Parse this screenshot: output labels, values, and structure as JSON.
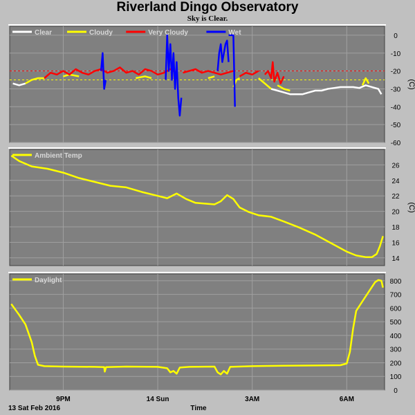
{
  "header": {
    "title": "Riverland Dingo Observatory",
    "subtitle": "Sky is Clear."
  },
  "footer": {
    "date_label": "13 Sat Feb 2016",
    "x_axis_label": "Time"
  },
  "colors": {
    "background": "#c0c0c0",
    "plot_area": "#808080",
    "grid": "#a0a0a0",
    "clear": "#ffffff",
    "cloudy": "#ffff00",
    "very_cloudy": "#ff0000",
    "wet": "#0000ff",
    "threshold_red": "#ff0000",
    "threshold_yellow": "#ffff00"
  },
  "chart_data": [
    {
      "type": "line",
      "panel": "sky",
      "unit": "(C)",
      "ylim": [
        -60,
        5
      ],
      "yticks": [
        0,
        -10,
        -20,
        -30,
        -40,
        -50,
        -60
      ],
      "xlim": [
        19.3,
        31.2
      ],
      "xticks": [
        {
          "x": 21,
          "label": "9PM"
        },
        {
          "x": 24,
          "label": "14 Sun"
        },
        {
          "x": 27,
          "label": "3AM"
        },
        {
          "x": 30,
          "label": "6AM"
        }
      ],
      "grid": true,
      "legend": "top-left",
      "legend_entries": [
        {
          "name": "Clear",
          "color": "#ffffff"
        },
        {
          "name": "Cloudy",
          "color": "#ffff00"
        },
        {
          "name": "Very Cloudy",
          "color": "#ff0000"
        },
        {
          "name": "Wet",
          "color": "#0000ff"
        }
      ],
      "thresholds": [
        {
          "value": -20,
          "color": "#ff0000"
        },
        {
          "value": -25,
          "color": "#ffff00"
        }
      ],
      "series": [
        {
          "name": "Clear",
          "color": "#ffffff",
          "segments": [
            [
              [
                19.4,
                -27
              ],
              [
                19.6,
                -28
              ],
              [
                19.8,
                -27
              ]
            ],
            [
              [
                27.6,
                -30
              ],
              [
                27.8,
                -31
              ],
              [
                28.0,
                -32
              ],
              [
                28.2,
                -33
              ],
              [
                28.4,
                -33
              ],
              [
                28.6,
                -33
              ],
              [
                28.8,
                -32
              ],
              [
                29.0,
                -31
              ],
              [
                29.2,
                -31
              ],
              [
                29.4,
                -30
              ],
              [
                29.6,
                -29.5
              ],
              [
                29.8,
                -29
              ],
              [
                30.0,
                -29
              ],
              [
                30.2,
                -29
              ],
              [
                30.4,
                -29.5
              ],
              [
                30.6,
                -28
              ],
              [
                30.8,
                -29
              ],
              [
                31.0,
                -30
              ],
              [
                31.1,
                -33
              ]
            ]
          ]
        },
        {
          "name": "Cloudy",
          "color": "#ffff00",
          "segments": [
            [
              [
                19.8,
                -27
              ],
              [
                20.0,
                -25
              ],
              [
                20.2,
                -24
              ],
              [
                20.4,
                -24
              ]
            ],
            [
              [
                21.0,
                -23
              ],
              [
                21.2,
                -22
              ],
              [
                21.5,
                -23
              ]
            ],
            [
              [
                23.3,
                -24
              ],
              [
                23.6,
                -23
              ],
              [
                23.8,
                -24
              ]
            ],
            [
              [
                25.6,
                -24
              ],
              [
                25.8,
                -23
              ]
            ],
            [
              [
                26.4,
                -29
              ],
              [
                26.5,
                -25
              ],
              [
                26.6,
                -24
              ]
            ],
            [
              [
                27.2,
                -24
              ],
              [
                27.4,
                -27
              ],
              [
                27.6,
                -30
              ]
            ],
            [
              [
                27.8,
                -28
              ],
              [
                28.0,
                -30
              ],
              [
                28.2,
                -31
              ]
            ],
            [
              [
                30.5,
                -28
              ],
              [
                30.6,
                -24
              ],
              [
                30.7,
                -27
              ]
            ]
          ]
        },
        {
          "name": "Very Cloudy",
          "color": "#ff0000",
          "segments": [
            [
              [
                20.4,
                -24
              ],
              [
                20.6,
                -21
              ],
              [
                20.8,
                -22
              ],
              [
                21.0,
                -20
              ],
              [
                21.2,
                -22
              ],
              [
                21.4,
                -19
              ],
              [
                21.6,
                -21
              ],
              [
                21.8,
                -22
              ],
              [
                22.0,
                -20
              ],
              [
                22.2,
                -19
              ],
              [
                22.4,
                -21
              ],
              [
                22.6,
                -20
              ],
              [
                22.8,
                -18
              ],
              [
                23.0,
                -21
              ],
              [
                23.2,
                -20
              ],
              [
                23.4,
                -22
              ],
              [
                23.6,
                -19
              ],
              [
                23.8,
                -20
              ],
              [
                24.0,
                -22
              ],
              [
                24.2,
                -21
              ],
              [
                24.4,
                -19
              ],
              [
                24.6,
                -21
              ]
            ],
            [
              [
                24.8,
                -21
              ],
              [
                25.0,
                -20
              ],
              [
                25.2,
                -19
              ],
              [
                25.4,
                -21
              ],
              [
                25.6,
                -20
              ],
              [
                25.8,
                -21
              ],
              [
                26.0,
                -22
              ],
              [
                26.2,
                -21
              ],
              [
                26.4,
                -20
              ]
            ],
            [
              [
                26.6,
                -23
              ],
              [
                26.8,
                -21
              ],
              [
                27.0,
                -22
              ],
              [
                27.2,
                -20
              ]
            ],
            [
              [
                27.4,
                -22
              ],
              [
                27.5,
                -20
              ],
              [
                27.6,
                -24
              ],
              [
                27.65,
                -15
              ],
              [
                27.7,
                -26
              ],
              [
                27.8,
                -21
              ],
              [
                27.9,
                -27
              ],
              [
                28.0,
                -23
              ]
            ]
          ]
        },
        {
          "name": "Wet",
          "color": "#0000ff",
          "segments": [
            [
              [
                22.2,
                -20
              ],
              [
                22.25,
                -10
              ],
              [
                22.3,
                -30
              ],
              [
                22.35,
                -25
              ]
            ],
            [
              [
                24.25,
                -25
              ],
              [
                24.3,
                0
              ],
              [
                24.35,
                -20
              ],
              [
                24.4,
                -5
              ],
              [
                24.45,
                -25
              ],
              [
                24.5,
                -10
              ],
              [
                24.55,
                -30
              ],
              [
                24.6,
                -15
              ],
              [
                24.65,
                -35
              ],
              [
                24.7,
                -45
              ],
              [
                24.75,
                -35
              ]
            ],
            [
              [
                25.9,
                -20
              ],
              [
                25.95,
                -10
              ],
              [
                26.0,
                -5
              ],
              [
                26.05,
                -15
              ],
              [
                26.1,
                -10
              ],
              [
                26.15,
                -5
              ],
              [
                26.2,
                -3
              ],
              [
                26.25,
                -15
              ]
            ],
            [
              [
                26.25,
                0
              ],
              [
                26.4,
                0
              ],
              [
                26.45,
                -40
              ]
            ]
          ]
        }
      ]
    },
    {
      "type": "line",
      "panel": "temperature",
      "unit": "(C)",
      "ylim": [
        13,
        28
      ],
      "yticks": [
        26,
        24,
        22,
        20,
        18,
        16,
        14
      ],
      "xlim": [
        19.3,
        31.2
      ],
      "grid": true,
      "legend": "top-left",
      "series": [
        {
          "name": "Ambient Temp",
          "color": "#ffff00",
          "points": [
            [
              19.35,
              27.2
            ],
            [
              19.6,
              26.5
            ],
            [
              20.0,
              25.8
            ],
            [
              20.5,
              25.5
            ],
            [
              21.0,
              25.0
            ],
            [
              21.5,
              24.3
            ],
            [
              22.0,
              23.8
            ],
            [
              22.5,
              23.3
            ],
            [
              23.0,
              23.1
            ],
            [
              23.5,
              22.5
            ],
            [
              24.0,
              22.0
            ],
            [
              24.3,
              21.7
            ],
            [
              24.6,
              22.3
            ],
            [
              24.9,
              21.6
            ],
            [
              25.2,
              21.1
            ],
            [
              25.5,
              21.0
            ],
            [
              25.8,
              20.9
            ],
            [
              26.0,
              21.3
            ],
            [
              26.2,
              22.1
            ],
            [
              26.4,
              21.6
            ],
            [
              26.6,
              20.5
            ],
            [
              26.9,
              19.9
            ],
            [
              27.2,
              19.5
            ],
            [
              27.6,
              19.3
            ],
            [
              28.0,
              18.7
            ],
            [
              28.5,
              17.9
            ],
            [
              29.0,
              17.0
            ],
            [
              29.5,
              15.9
            ],
            [
              30.0,
              14.8
            ],
            [
              30.3,
              14.3
            ],
            [
              30.6,
              14.1
            ],
            [
              30.8,
              14.1
            ],
            [
              30.95,
              14.5
            ],
            [
              31.05,
              15.5
            ],
            [
              31.15,
              16.8
            ]
          ]
        }
      ]
    },
    {
      "type": "line",
      "panel": "daylight",
      "ylim": [
        0,
        850
      ],
      "yticks": [
        800,
        700,
        600,
        500,
        400,
        300,
        200,
        100,
        0
      ],
      "xlim": [
        19.3,
        31.2
      ],
      "grid": true,
      "legend": "top-left",
      "series": [
        {
          "name": "Daylight",
          "color": "#ffff00",
          "points": [
            [
              19.35,
              630
            ],
            [
              19.6,
              550
            ],
            [
              19.8,
              480
            ],
            [
              20.0,
              350
            ],
            [
              20.1,
              250
            ],
            [
              20.2,
              185
            ],
            [
              20.4,
              175
            ],
            [
              21.0,
              172
            ],
            [
              22.0,
              170
            ],
            [
              22.3,
              168
            ],
            [
              22.32,
              135
            ],
            [
              22.36,
              168
            ],
            [
              23.0,
              172
            ],
            [
              24.0,
              170
            ],
            [
              24.3,
              160
            ],
            [
              24.4,
              130
            ],
            [
              24.5,
              140
            ],
            [
              24.6,
              120
            ],
            [
              24.7,
              165
            ],
            [
              25.0,
              170
            ],
            [
              25.8,
              172
            ],
            [
              25.9,
              130
            ],
            [
              26.0,
              115
            ],
            [
              26.1,
              140
            ],
            [
              26.2,
              120
            ],
            [
              26.3,
              170
            ],
            [
              27.0,
              175
            ],
            [
              28.0,
              178
            ],
            [
              29.0,
              180
            ],
            [
              29.8,
              182
            ],
            [
              30.0,
              195
            ],
            [
              30.1,
              280
            ],
            [
              30.2,
              450
            ],
            [
              30.3,
              580
            ],
            [
              30.5,
              650
            ],
            [
              30.7,
              720
            ],
            [
              30.9,
              790
            ],
            [
              31.0,
              805
            ],
            [
              31.1,
              800
            ],
            [
              31.15,
              750
            ]
          ]
        }
      ]
    }
  ]
}
